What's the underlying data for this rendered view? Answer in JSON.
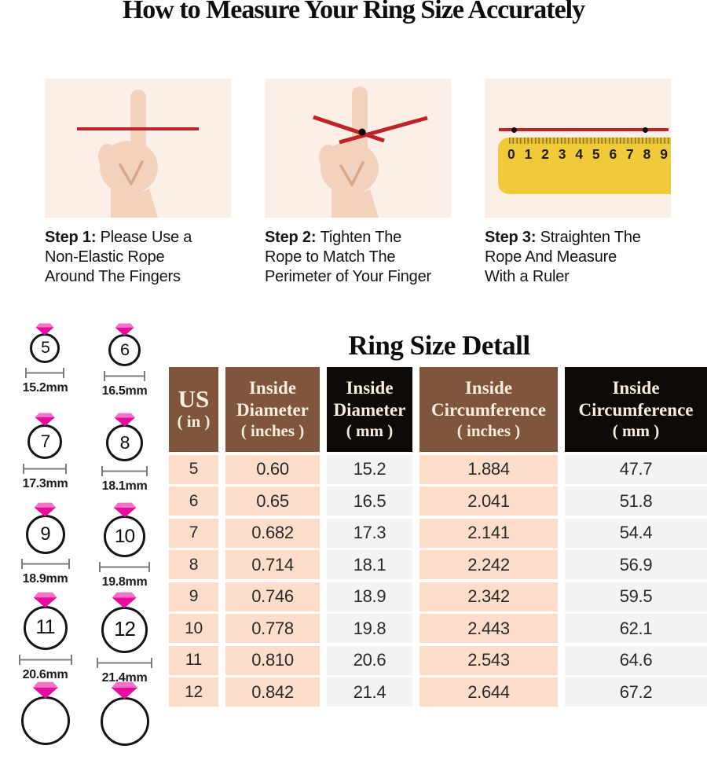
{
  "page": {
    "title": "How to Measure Your Ring Size Accurately"
  },
  "steps": [
    {
      "label": "Step 1:",
      "lines": [
        "Please Use a",
        "Non-Elastic Rope",
        "Around The Fingers"
      ],
      "illustration": "hand-with-straight-rope"
    },
    {
      "label": "Step 2:",
      "lines": [
        "Tighten The",
        "Rope to Match The",
        "Perimeter of Your Finger"
      ],
      "illustration": "hand-with-tightened-rope"
    },
    {
      "label": "Step 3:",
      "lines": [
        "Straighten The",
        "Rope And Measure",
        "With a Ruler"
      ],
      "illustration": "rope-on-ruler",
      "ruler": {
        "numbers": [
          "0",
          "1",
          "2",
          "3",
          "4",
          "5",
          "6",
          "7",
          "8",
          "9"
        ]
      }
    }
  ],
  "ring_chart": {
    "rings": [
      {
        "size": "5",
        "diameter_label": "15.2mm"
      },
      {
        "size": "6",
        "diameter_label": "16.5mm"
      },
      {
        "size": "7",
        "diameter_label": "17.3mm"
      },
      {
        "size": "8",
        "diameter_label": "18.1mm"
      },
      {
        "size": "9",
        "diameter_label": "18.9mm"
      },
      {
        "size": "10",
        "diameter_label": "19.8mm"
      },
      {
        "size": "11",
        "diameter_label": "20.6mm"
      },
      {
        "size": "12",
        "diameter_label": "21.4mm"
      },
      {
        "size": "",
        "diameter_label": "",
        "partial": true
      },
      {
        "size": "",
        "diameter_label": "",
        "partial": true
      }
    ]
  },
  "size_table": {
    "title": "Ring Size Detall",
    "columns": [
      {
        "lines": [
          "US",
          "( in )"
        ],
        "theme": "brown"
      },
      {
        "lines": [
          "Inside",
          "Diameter",
          "( inches )"
        ],
        "theme": "brown"
      },
      {
        "lines": [
          "Inside",
          "Diameter",
          "( mm )"
        ],
        "theme": "black"
      },
      {
        "lines": [
          "Inside",
          "Circumference",
          "( inches )"
        ],
        "theme": "brown"
      },
      {
        "lines": [
          "Inside",
          "Circumference",
          "( mm )"
        ],
        "theme": "black"
      }
    ],
    "rows": [
      [
        "5",
        "0.60",
        "15.2",
        "1.884",
        "47.7"
      ],
      [
        "6",
        "0.65",
        "16.5",
        "2.041",
        "51.8"
      ],
      [
        "7",
        "0.682",
        "17.3",
        "2.141",
        "54.4"
      ],
      [
        "8",
        "0.714",
        "18.1",
        "2.242",
        "56.9"
      ],
      [
        "9",
        "0.746",
        "18.9",
        "2.342",
        "59.5"
      ],
      [
        "10",
        "0.778",
        "19.8",
        "2.443",
        "62.1"
      ],
      [
        "11",
        "0.810",
        "20.6",
        "2.543",
        "64.6"
      ],
      [
        "12",
        "0.842",
        "21.4",
        "2.644",
        "67.2"
      ]
    ]
  },
  "colors": {
    "rope_red": "#bf2329",
    "ruler_yellow": "#f1ca39",
    "panel_background": "#fcefe8",
    "header_brown": "#7f563b",
    "header_black": "#0d0a08",
    "row_pink": "#fbddc9",
    "row_gray": "#f4f3f1",
    "diamond_pink": "#e70ba0",
    "diamond_pink_light": "#f573c6"
  }
}
